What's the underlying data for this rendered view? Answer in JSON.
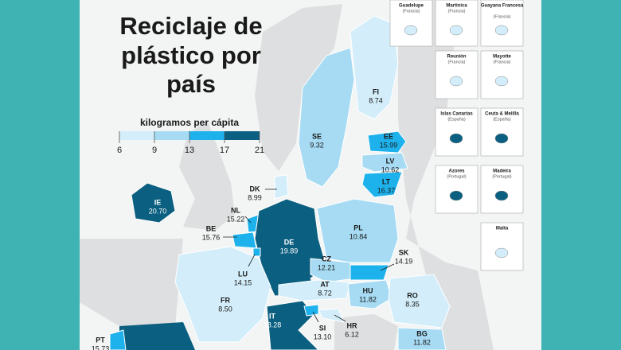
{
  "title": [
    "Reciclaje de",
    "plástico por",
    "país"
  ],
  "legend": {
    "title": "kilogramos per cápita",
    "ticks": [
      6,
      9,
      13,
      17,
      21
    ],
    "colors": [
      "#d3eefa",
      "#a6dbf3",
      "#1eb2ec",
      "#0b5f80"
    ]
  },
  "countries": [
    {
      "code": "FI",
      "value": 8.74,
      "value_label": "8.74"
    },
    {
      "code": "SE",
      "value": 9.32,
      "value_label": "9.32"
    },
    {
      "code": "EE",
      "value": 15.99,
      "value_label": "15.99"
    },
    {
      "code": "LV",
      "value": 10.62,
      "value_label": "10.62"
    },
    {
      "code": "LT",
      "value": 16.37,
      "value_label": "16.37"
    },
    {
      "code": "DK",
      "value": 8.99,
      "value_label": "8.99"
    },
    {
      "code": "IE",
      "value": 20.7,
      "value_label": "20.70"
    },
    {
      "code": "NL",
      "value": 15.22,
      "value_label": "15.22"
    },
    {
      "code": "BE",
      "value": 15.76,
      "value_label": "15.76"
    },
    {
      "code": "DE",
      "value": 19.89,
      "value_label": "19.89"
    },
    {
      "code": "LU",
      "value": 14.15,
      "value_label": "14.15"
    },
    {
      "code": "PL",
      "value": 10.84,
      "value_label": "10.84"
    },
    {
      "code": "CZ",
      "value": 12.21,
      "value_label": "12.21"
    },
    {
      "code": "SK",
      "value": 14.19,
      "value_label": "14.19"
    },
    {
      "code": "FR",
      "value": 8.5,
      "value_label": "8.50"
    },
    {
      "code": "AT",
      "value": 8.72,
      "value_label": "8.72"
    },
    {
      "code": "HU",
      "value": 11.82,
      "value_label": "11.82"
    },
    {
      "code": "RO",
      "value": 8.35,
      "value_label": "8.35"
    },
    {
      "code": "IT",
      "value": 18.28,
      "value_label": "18.28"
    },
    {
      "code": "SI",
      "value": 13.1,
      "value_label": "13.10"
    },
    {
      "code": "HR",
      "value": 6.12,
      "value_label": "6.12"
    },
    {
      "code": "BG",
      "value": 11.82,
      "value_label": "11.82"
    },
    {
      "code": "PT",
      "value": 15.73,
      "value_label": "15.73"
    }
  ],
  "insets": [
    {
      "name": "Guadelupe",
      "country": "(Francia)"
    },
    {
      "name": "Martinica",
      "country": "(Francia)"
    },
    {
      "name": "Guayana Francesa",
      "country": "(Francia)"
    },
    {
      "name": "Reunión",
      "country": "(Francia)"
    },
    {
      "name": "Mayotte",
      "country": "(Francia)"
    },
    {
      "name": "Islas Canarias",
      "country": "(España)"
    },
    {
      "name": "Ceuta & Melilla",
      "country": "(España)"
    },
    {
      "name": "Azores",
      "country": "(Portugal)"
    },
    {
      "name": "Madeira",
      "country": "(Portugal)"
    },
    {
      "name": "Malta"
    }
  ]
}
